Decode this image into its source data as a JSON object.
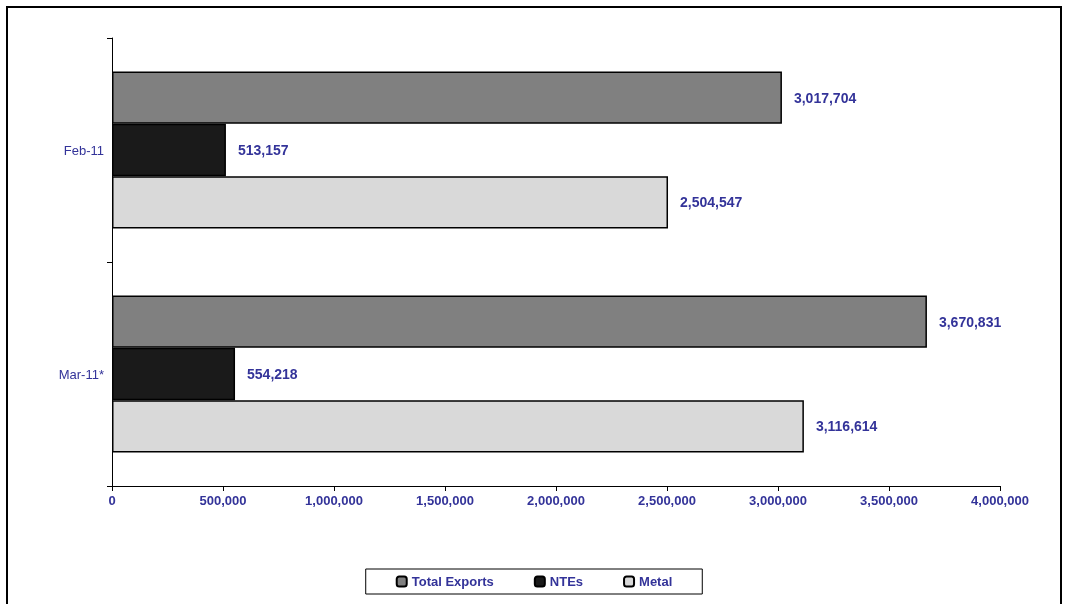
{
  "chart_data": {
    "type": "bar",
    "orientation": "horizontal",
    "categories": [
      "Feb-11",
      "Mar-11*"
    ],
    "series": [
      {
        "name": "Total Exports",
        "color": "#808080",
        "values": [
          3017704,
          3670831
        ],
        "value_labels": [
          "3,017,704",
          "3,670,831"
        ]
      },
      {
        "name": "NTEs",
        "color": "#1a1a1a",
        "values": [
          513157,
          554218
        ],
        "value_labels": [
          "513,157",
          "554,218"
        ]
      },
      {
        "name": "Metal",
        "color": "#d9d9d9",
        "values": [
          2504547,
          3116614
        ],
        "value_labels": [
          "2,504,547",
          "3,116,614"
        ]
      }
    ],
    "xlim": [
      0,
      4000000
    ],
    "xticks": [
      0,
      {
        "value": 500000,
        "label": "500,000"
      },
      {
        "value": 1000000,
        "label": "1,000,000"
      },
      {
        "value": 1500000,
        "label": "1,500,000"
      },
      {
        "value": 2000000,
        "label": "2,000,000"
      },
      {
        "value": 2500000,
        "label": "2,500,000"
      },
      {
        "value": 3000000,
        "label": "3,000,000"
      },
      {
        "value": 3500000,
        "label": "3,500,000"
      },
      {
        "value": 4000000,
        "label": "4,000,000"
      }
    ],
    "grid": false,
    "legend": "bottom"
  }
}
